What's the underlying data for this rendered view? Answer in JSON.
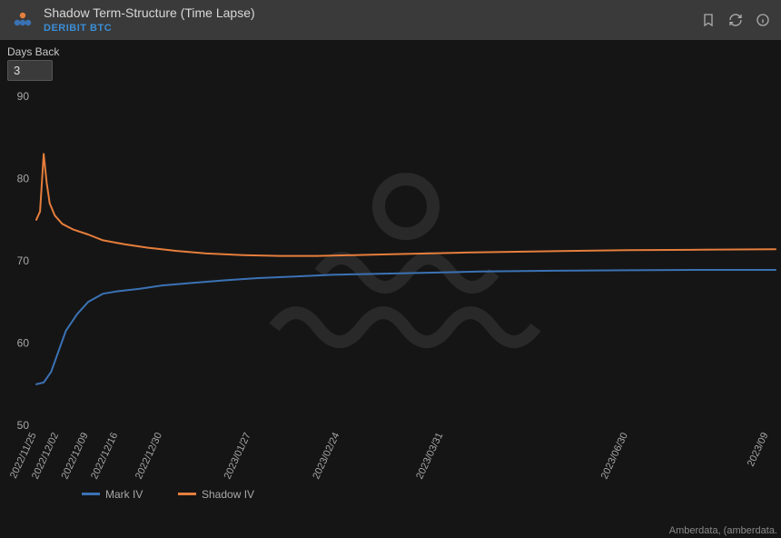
{
  "header": {
    "title": "Shadow Term-Structure (Time Lapse)",
    "subtitle": "DERIBIT BTC",
    "logo_colors": {
      "top": "#e67e3c",
      "bottom": "#3b72b5"
    }
  },
  "toolbar_icons": {
    "bookmark": "bookmark-icon",
    "refresh": "refresh-icon",
    "info": "info-icon"
  },
  "controls": {
    "days_back_label": "Days Back",
    "days_back_value": "3"
  },
  "footer": {
    "attribution": "Amberdata, (amberdata."
  },
  "chart": {
    "type": "line",
    "background_color": "#151515",
    "grid_color": "#2a2a2a",
    "axis_text_color": "#a8a8a8",
    "ylim": [
      50,
      90
    ],
    "ytick_step": 10,
    "yticks": [
      50,
      60,
      70,
      80,
      90
    ],
    "xticks": [
      {
        "t": 0.0,
        "label": "2022/11/25"
      },
      {
        "t": 0.03,
        "label": "2022/12/02"
      },
      {
        "t": 0.07,
        "label": "2022/12/09"
      },
      {
        "t": 0.11,
        "label": "2022/12/16"
      },
      {
        "t": 0.17,
        "label": "2022/12/30"
      },
      {
        "t": 0.29,
        "label": "2023/01/27"
      },
      {
        "t": 0.41,
        "label": "2023/02/24"
      },
      {
        "t": 0.55,
        "label": "2023/03/31"
      },
      {
        "t": 0.8,
        "label": "2023/06/30"
      },
      {
        "t": 0.99,
        "label": "2023/09"
      }
    ],
    "series": [
      {
        "name": "Mark IV",
        "color": "#3b72b5",
        "width": 2,
        "points": [
          [
            0.0,
            55.0
          ],
          [
            0.01,
            55.2
          ],
          [
            0.02,
            56.5
          ],
          [
            0.03,
            59.0
          ],
          [
            0.04,
            61.5
          ],
          [
            0.055,
            63.5
          ],
          [
            0.07,
            65.0
          ],
          [
            0.09,
            66.0
          ],
          [
            0.11,
            66.3
          ],
          [
            0.14,
            66.6
          ],
          [
            0.17,
            67.0
          ],
          [
            0.21,
            67.3
          ],
          [
            0.25,
            67.6
          ],
          [
            0.3,
            67.9
          ],
          [
            0.35,
            68.1
          ],
          [
            0.4,
            68.3
          ],
          [
            0.45,
            68.4
          ],
          [
            0.5,
            68.5
          ],
          [
            0.55,
            68.6
          ],
          [
            0.6,
            68.7
          ],
          [
            0.7,
            68.8
          ],
          [
            0.8,
            68.85
          ],
          [
            0.9,
            68.9
          ],
          [
            1.0,
            68.9
          ]
        ]
      },
      {
        "name": "Shadow IV",
        "color": "#e67e3c",
        "width": 2,
        "points": [
          [
            0.0,
            75.0
          ],
          [
            0.005,
            76.0
          ],
          [
            0.01,
            83.0
          ],
          [
            0.014,
            79.5
          ],
          [
            0.018,
            77.0
          ],
          [
            0.025,
            75.5
          ],
          [
            0.035,
            74.5
          ],
          [
            0.05,
            73.8
          ],
          [
            0.07,
            73.2
          ],
          [
            0.09,
            72.5
          ],
          [
            0.12,
            72.0
          ],
          [
            0.15,
            71.6
          ],
          [
            0.19,
            71.2
          ],
          [
            0.23,
            70.9
          ],
          [
            0.28,
            70.7
          ],
          [
            0.33,
            70.6
          ],
          [
            0.38,
            70.6
          ],
          [
            0.43,
            70.7
          ],
          [
            0.48,
            70.8
          ],
          [
            0.53,
            70.9
          ],
          [
            0.58,
            71.0
          ],
          [
            0.65,
            71.1
          ],
          [
            0.72,
            71.2
          ],
          [
            0.8,
            71.3
          ],
          [
            0.9,
            71.35
          ],
          [
            1.0,
            71.4
          ]
        ]
      }
    ],
    "legend": {
      "items": [
        {
          "label": "Mark IV",
          "color": "#3b72b5"
        },
        {
          "label": "Shadow IV",
          "color": "#e67e3c"
        }
      ]
    }
  }
}
